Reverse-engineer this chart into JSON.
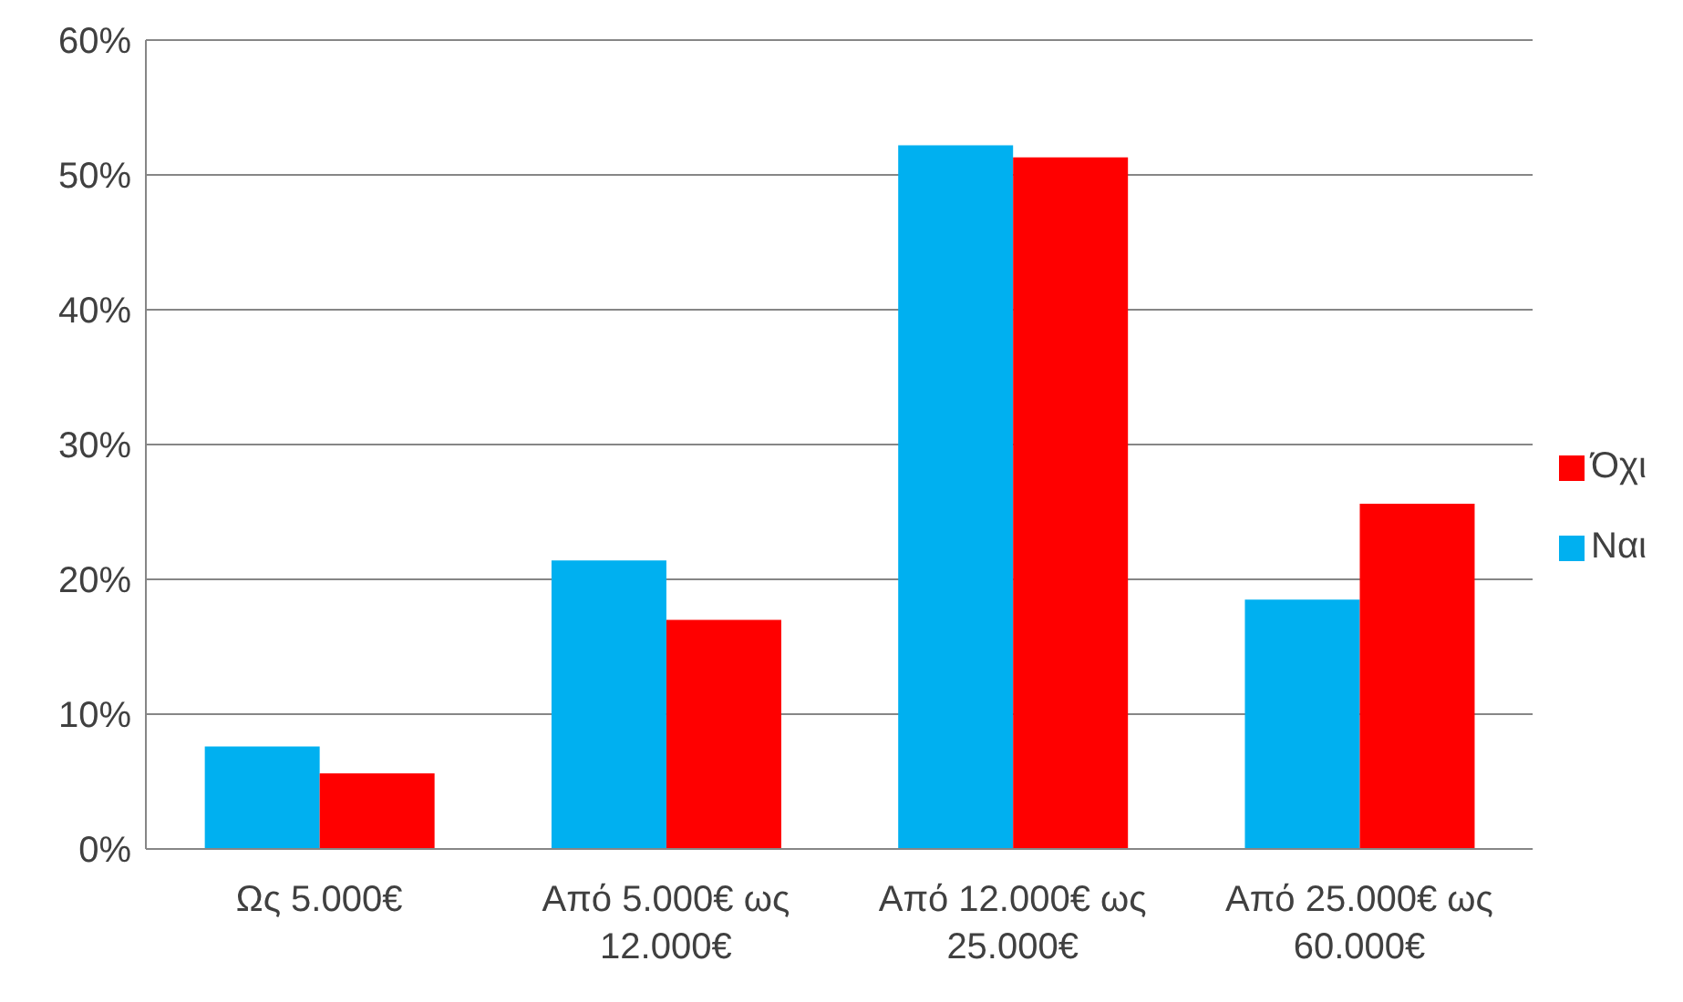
{
  "chart_data": {
    "type": "bar",
    "categories": [
      "Ως 5.000€",
      "Από 5.000€ ως 12.000€",
      "Από 12.000€ ως 25.000€",
      "Από 25.000€ ως 60.000€"
    ],
    "series": [
      {
        "name": "Ναι",
        "color": "#00b0f0",
        "values": [
          7.6,
          21.4,
          52.2,
          18.5
        ]
      },
      {
        "name": "Όχι",
        "color": "#ff0000",
        "values": [
          5.6,
          17.0,
          51.3,
          25.6
        ]
      }
    ],
    "ylim": [
      0,
      60
    ],
    "yticks": [
      {
        "value": 0,
        "label": "0%"
      },
      {
        "value": 10,
        "label": "10%"
      },
      {
        "value": 20,
        "label": "20%"
      },
      {
        "value": 30,
        "label": "30%"
      },
      {
        "value": 40,
        "label": "40%"
      },
      {
        "value": 50,
        "label": "50%"
      },
      {
        "value": 60,
        "label": "60%"
      }
    ],
    "grid": "y",
    "legend": "right"
  }
}
